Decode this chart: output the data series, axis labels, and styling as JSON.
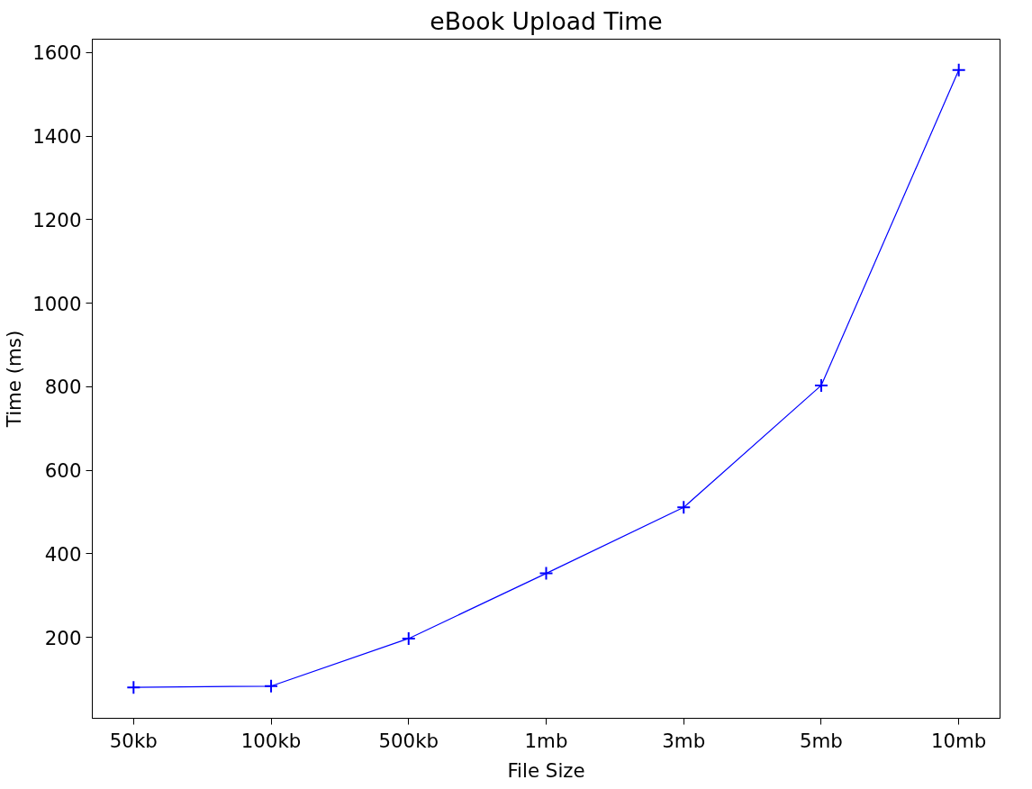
{
  "chart_data": {
    "type": "line",
    "title": "eBook Upload Time",
    "xlabel": "File Size",
    "ylabel": "Time (ms)",
    "categories": [
      "50kb",
      "100kb",
      "500kb",
      "1mb",
      "3mb",
      "5mb",
      "10mb"
    ],
    "series": [
      {
        "color": "#0000ff",
        "values": [
          80,
          83,
          197,
          353,
          511,
          803,
          1558
        ]
      }
    ],
    "ylim": [
      6,
      1632
    ],
    "yticks": [
      200,
      400,
      600,
      800,
      1000,
      1200,
      1400,
      1600
    ],
    "marker": "cross",
    "line_style": "solid",
    "grid": false
  }
}
